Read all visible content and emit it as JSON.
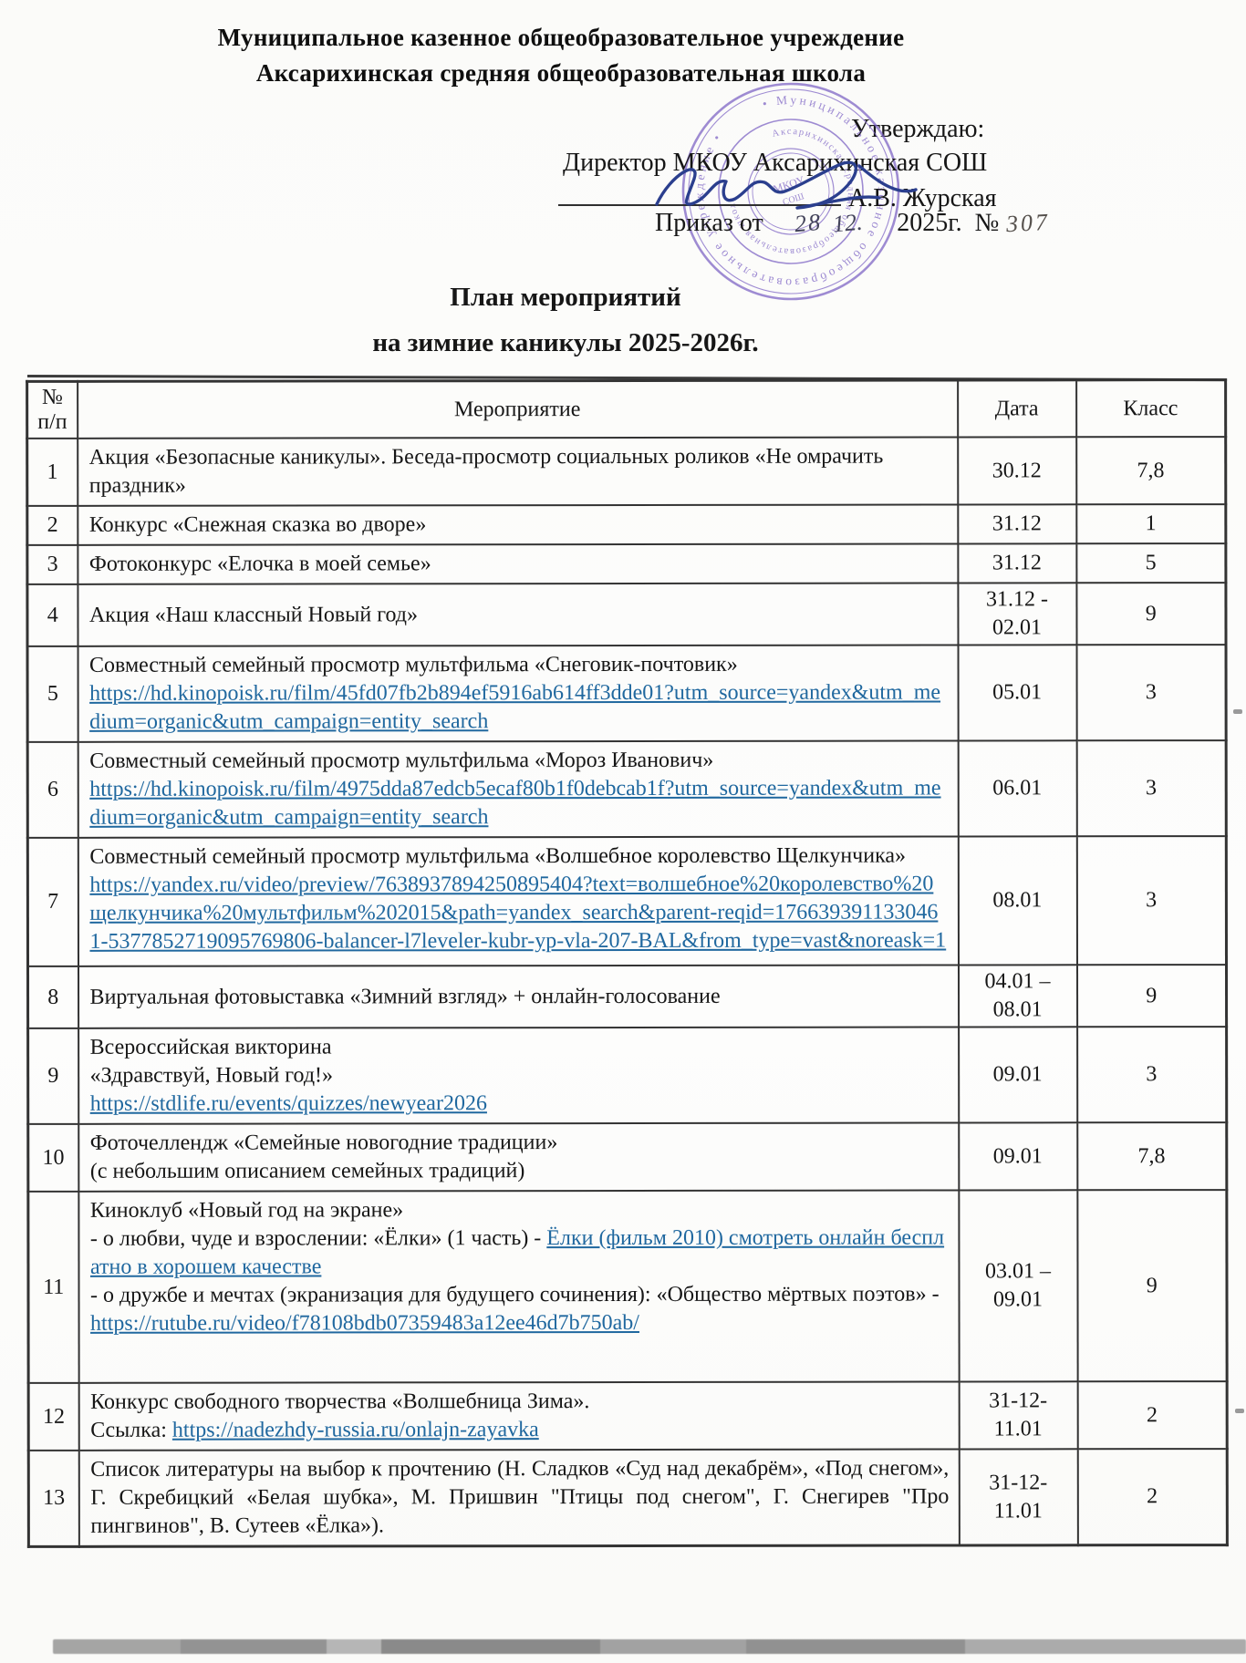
{
  "document": {
    "org_line1": "Муниципальное казенное общеобразовательное учреждение",
    "org_line2": "Аксарихинская средняя общеобразовательная школа",
    "approval": {
      "approve": "Утверждаю:",
      "director": "Директор МКОУ Аксарихинская СОШ",
      "name": "А.В. Журская",
      "order_prefix": "Приказ от",
      "order_day": "28",
      "order_month": "12.",
      "order_year": "2025г.",
      "number_sign": "№",
      "order_number": "307"
    },
    "stamp": {
      "outer_text": "• Муниципальное казенное общеобразовательное учреждение •",
      "inner_text": "Аксарихинская средняя общеобразовательная школа",
      "color": "#7b61c4"
    },
    "title_line1": "План мероприятий",
    "title_line2": "на зимние каникулы 2025-2026г."
  },
  "table": {
    "headers": {
      "num_line1": "№",
      "num_line2": "п/п",
      "event": "Мероприятие",
      "date": "Дата",
      "cls": "Класс"
    },
    "rows": [
      {
        "num": "1",
        "date": [
          "30.12"
        ],
        "cls": "7,8",
        "lines": [
          [
            {
              "t": "Акция «Безопасные каникулы». Беседа-просмотр социальных роликов «Не омрачить праздник»"
            }
          ]
        ]
      },
      {
        "num": "2",
        "date": [
          "31.12"
        ],
        "cls": "1",
        "lines": [
          [
            {
              "t": "Конкурс «Снежная сказка во дворе»"
            }
          ]
        ]
      },
      {
        "num": "3",
        "date": [
          "31.12"
        ],
        "cls": "5",
        "lines": [
          [
            {
              "t": "Фотоконкурс «Елочка в моей семье»"
            }
          ]
        ]
      },
      {
        "num": "4",
        "date": [
          "31.12 -",
          "02.01"
        ],
        "cls": "9",
        "lines": [
          [
            {
              "t": "Акция «Наш классный Новый год»"
            }
          ]
        ]
      },
      {
        "num": "5",
        "date": [
          "05.01"
        ],
        "cls": "3",
        "lines": [
          [
            {
              "t": "Совместный семейный просмотр мультфильма «Снеговик-почтовик»"
            }
          ],
          [
            {
              "t": "https://hd.kinopoisk.ru/film/45fd07fb2b894ef5916ab614ff3dde01?utm_source=yandex&utm_medium=organic&utm_campaign=entity_search",
              "link": true
            }
          ]
        ]
      },
      {
        "num": "6",
        "date": [
          "06.01"
        ],
        "cls": "3",
        "lines": [
          [
            {
              "t": "Совместный семейный просмотр мультфильма «Мороз Иванович»"
            }
          ],
          [
            {
              "t": "https://hd.kinopoisk.ru/film/4975dda87edcb5ecaf80b1f0debcab1f?utm_source=yandex&utm_medium=organic&utm_campaign=entity_search",
              "link": true
            }
          ]
        ]
      },
      {
        "num": "7",
        "date": [
          "08.01"
        ],
        "cls": "3",
        "lines": [
          [
            {
              "t": "Совместный семейный просмотр мультфильма «Волшебное королевство Щелкунчика»"
            }
          ],
          [
            {
              "t": "https://yandex.ru/video/preview/7638937894250895404?text=волшебное%20королевство%20щелкунчика%20мультфильм%202015&path=yandex_search&parent-reqid=1766393911330461-5377852719095769806-balancer-l7leveler-kubr-yp-vla-207-BAL&from_type=vast&noreask=1",
              "link": true
            }
          ]
        ]
      },
      {
        "num": "8",
        "date": [
          "04.01 –",
          "08.01"
        ],
        "cls": "9",
        "lines": [
          [
            {
              "t": "Виртуальная фотовыставка «Зимний взгляд» + онлайн-голосование"
            }
          ]
        ]
      },
      {
        "num": "9",
        "date": [
          "09.01"
        ],
        "cls": "3",
        "lines": [
          [
            {
              "t": "Всероссийская викторина"
            }
          ],
          [
            {
              "t": "«Здравствуй, Новый год!»"
            }
          ],
          [
            {
              "t": "https://stdlife.ru/events/quizzes/newyear2026",
              "link": true
            }
          ]
        ]
      },
      {
        "num": "10",
        "date": [
          "09.01"
        ],
        "cls": "7,8",
        "lines": [
          [
            {
              "t": "Фоточеллендж «Семейные новогодние традиции»"
            }
          ],
          [
            {
              "t": "(с небольшим описанием семейных традиций)"
            }
          ]
        ]
      },
      {
        "num": "11",
        "date": [
          "03.01 –",
          "09.01"
        ],
        "cls": "9",
        "lines": [
          [
            {
              "t": "Киноклуб «Новый год на экране»"
            }
          ],
          [
            {
              "t": "- о любви, чуде и взрослении: «Ёлки» (1 часть) - "
            },
            {
              "t": "Ёлки (фильм 2010) смотреть онлайн бесплатно в хорошем качестве",
              "link": true
            }
          ],
          [
            {
              "t": "- о дружбе и мечтах (экранизация для будущего сочинения): «Общество мёртвых поэтов» -"
            }
          ],
          [
            {
              "t": "https://rutube.ru/video/f78108bdb07359483a12ee46d7b750ab/",
              "link": true
            }
          ]
        ]
      },
      {
        "num": "12",
        "date": [
          "31-12-",
          "11.01"
        ],
        "cls": "2",
        "lines": [
          [
            {
              "t": "Конкурс свободного творчества «Волшебница Зима»."
            }
          ],
          [
            {
              "t": "Ссылка: "
            },
            {
              "t": "https://nadezhdy-russia.ru/onlajn-zayavka",
              "link": true
            }
          ]
        ]
      },
      {
        "num": "13",
        "date": [
          "31-12-",
          "11.01"
        ],
        "cls": "2",
        "lines": [
          [
            {
              "t": "Список литературы на выбор к прочтению (Н. Сладков «Суд над декабрём», «Под снегом», Г. Скребицкий «Белая шубка», М. Пришвин \"Птицы под снегом\", Г. Снегирев \"Про пингвинов\", В. Сутеев «Ёлка»)."
            }
          ]
        ]
      }
    ]
  },
  "colors": {
    "link": "#20689f",
    "stamp": "#7b61c4",
    "signature": "#2b3f8e"
  }
}
